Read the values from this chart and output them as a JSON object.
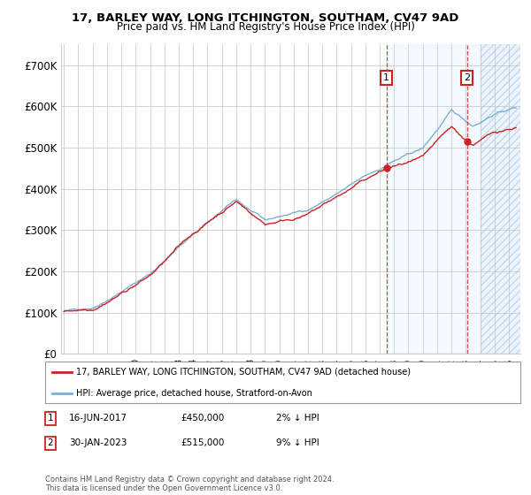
{
  "title1": "17, BARLEY WAY, LONG ITCHINGTON, SOUTHAM, CV47 9AD",
  "title2": "Price paid vs. HM Land Registry's House Price Index (HPI)",
  "ylim": [
    0,
    750000
  ],
  "yticks": [
    0,
    100000,
    200000,
    300000,
    400000,
    500000,
    600000,
    700000
  ],
  "ytick_labels": [
    "£0",
    "£100K",
    "£200K",
    "£300K",
    "£400K",
    "£500K",
    "£600K",
    "£700K"
  ],
  "hpi_color": "#7ab0d4",
  "price_color": "#cc2222",
  "marker1_year": 2017.46,
  "marker1_price": 450000,
  "marker1_label": "16-JUN-2017",
  "marker1_value": "£450,000",
  "marker1_note": "2% ↓ HPI",
  "marker2_year": 2023.08,
  "marker2_price": 515000,
  "marker2_label": "30-JAN-2023",
  "marker2_value": "£515,000",
  "marker2_note": "9% ↓ HPI",
  "legend_line1": "17, BARLEY WAY, LONG ITCHINGTON, SOUTHAM, CV47 9AD (detached house)",
  "legend_line2": "HPI: Average price, detached house, Stratford-on-Avon",
  "footnote": "Contains HM Land Registry data © Crown copyright and database right 2024.\nThis data is licensed under the Open Government Licence v3.0.",
  "shaded_start": 2024.0,
  "shaded_end": 2027.0,
  "xlim_left": 1994.8,
  "xlim_right": 2026.8,
  "background_color": "#ffffff",
  "grid_color": "#cccccc",
  "shade_color": "#ddeeff"
}
